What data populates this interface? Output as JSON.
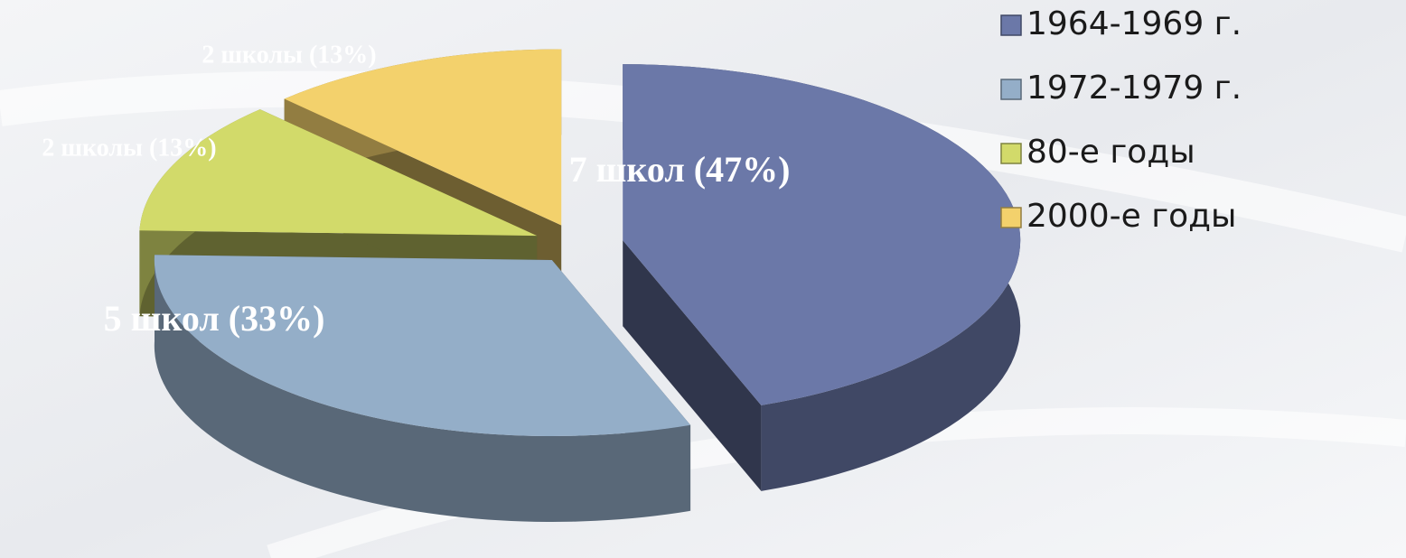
{
  "chart_data": {
    "type": "pie",
    "categories": [
      "1964-1969 г.",
      "1972-1979 г.",
      "80-е годы",
      "2000-е годы"
    ],
    "values": [
      47,
      33,
      13,
      13
    ],
    "value_labels": [
      "7 школ (47%)",
      "5 школ (33%)",
      "2 школы (13%)",
      "2 школы (13%)"
    ],
    "colors": [
      "#6b78a8",
      "#94aec8",
      "#d2da6a",
      "#f3d16c"
    ],
    "legend": "right"
  }
}
